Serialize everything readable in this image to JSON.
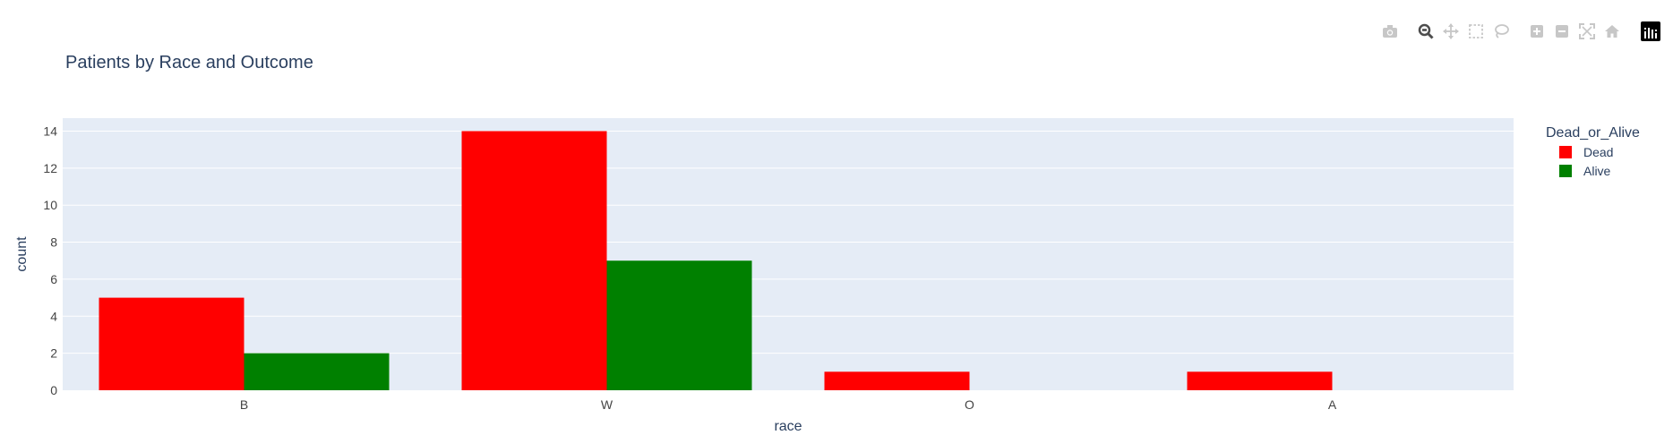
{
  "modebar": {
    "buttons": [
      {
        "name": "camera-icon",
        "group": 0
      },
      {
        "name": "zoom-icon",
        "group": 1,
        "active": true
      },
      {
        "name": "pan-icon",
        "group": 1
      },
      {
        "name": "box-select-icon",
        "group": 1
      },
      {
        "name": "lasso-select-icon",
        "group": 1
      },
      {
        "name": "zoom-in-icon",
        "group": 2
      },
      {
        "name": "zoom-out-icon",
        "group": 2
      },
      {
        "name": "autoscale-icon",
        "group": 2
      },
      {
        "name": "reset-axes-icon",
        "group": 2
      },
      {
        "name": "plotly-logo-icon",
        "group": 3
      }
    ]
  },
  "chart_data": {
    "type": "bar",
    "title": "Patients by Race and Outcome",
    "xlabel": "race",
    "ylabel": "count",
    "categories": [
      "B",
      "W",
      "O",
      "A"
    ],
    "ylim": [
      0,
      14.7
    ],
    "yticks": [
      0,
      2,
      4,
      6,
      8,
      10,
      12,
      14
    ],
    "grid": true,
    "legend": {
      "title": "Dead_or_Alive",
      "placement": "top-right"
    },
    "series": [
      {
        "name": "Dead",
        "color": "#ff0000",
        "values": [
          5,
          14,
          1,
          1
        ]
      },
      {
        "name": "Alive",
        "color": "#008000",
        "values": [
          2,
          7,
          0,
          0
        ]
      }
    ],
    "colors": {
      "plot_bg": "#e5ecf6",
      "grid": "#ffffff",
      "text": "#2a3f5f",
      "tick": "#444444",
      "modebar_icon": "#c7c7c7",
      "modebar_active": "#4d4d4d"
    }
  }
}
